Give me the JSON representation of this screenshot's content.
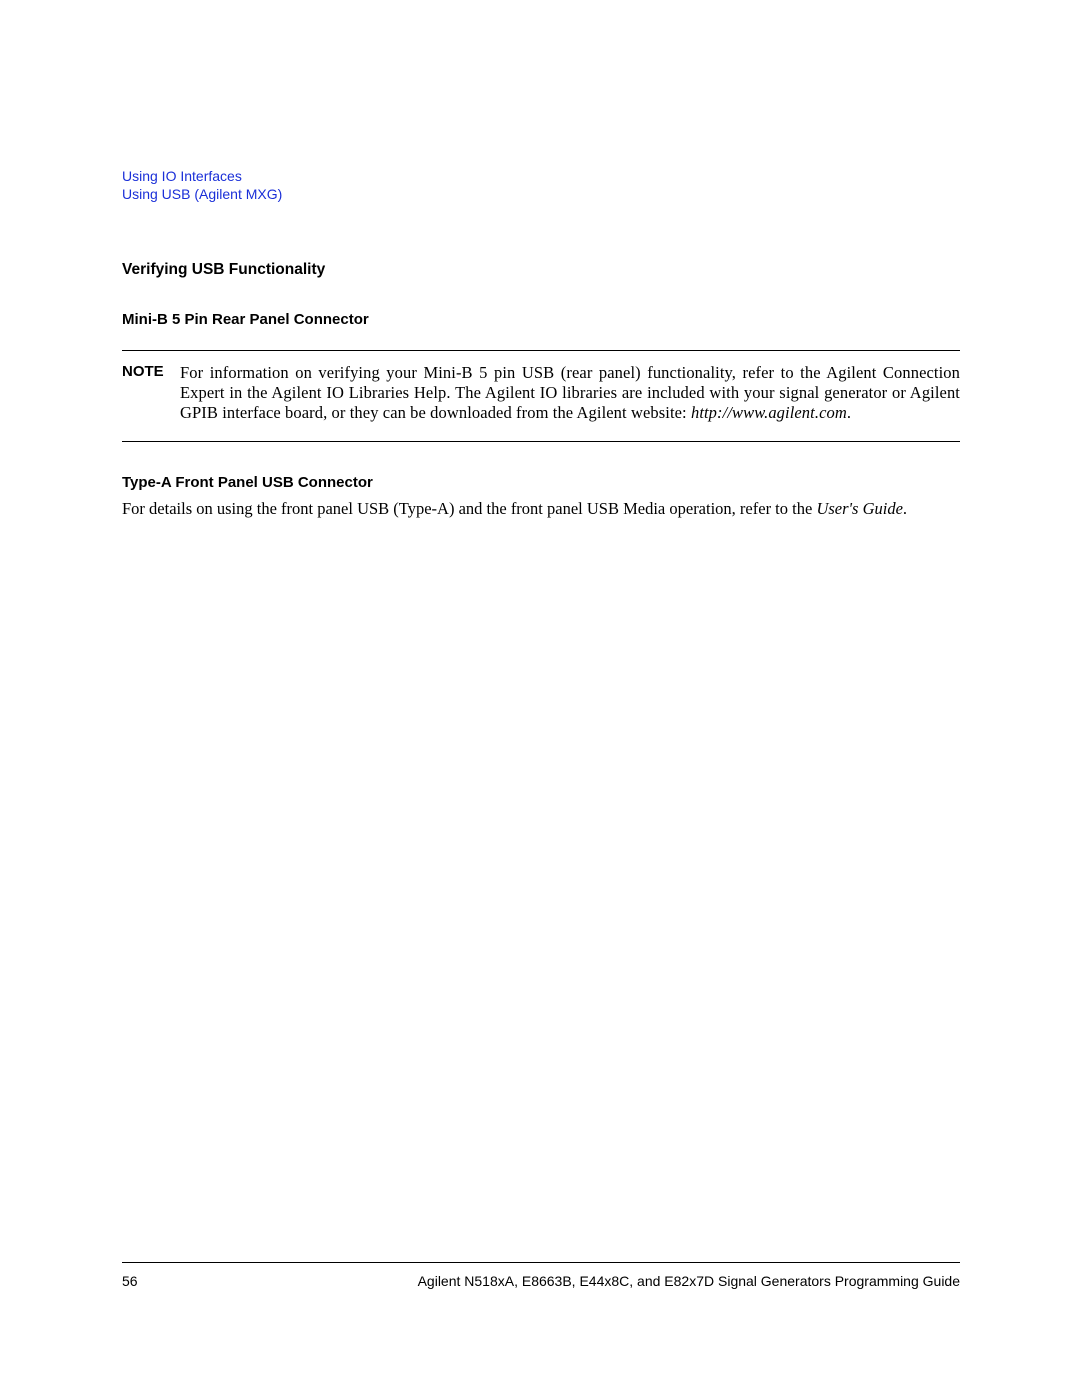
{
  "header": {
    "link1": "Using IO Interfaces",
    "link2": "Using USB (Agilent MXG)"
  },
  "section": {
    "heading1": "Verifying USB Functionality",
    "heading2": "Mini-B 5 Pin Rear Panel Connector",
    "note_label": "NOTE",
    "note_text_prefix": "For information on verifying your Mini-B 5 pin USB (rear panel) functionality, refer to the Agilent Connection Expert in the Agilent IO Libraries Help. The Agilent IO libraries are included with your signal generator or Agilent GPIB interface board, or they can be downloaded from the Agilent website: ",
    "note_url": "http://www.agilent.com",
    "note_period": ".",
    "heading3": "Type-A Front Panel USB Connector",
    "para_prefix": "For details on using the front panel USB (Type-A) and the front panel USB Media operation, refer to the ",
    "para_italic": "User's Guide",
    "para_period": "."
  },
  "footer": {
    "page": "56",
    "title": "Agilent N518xA, E8663B, E44x8C, and E82x7D Signal Generators Programming Guide"
  }
}
